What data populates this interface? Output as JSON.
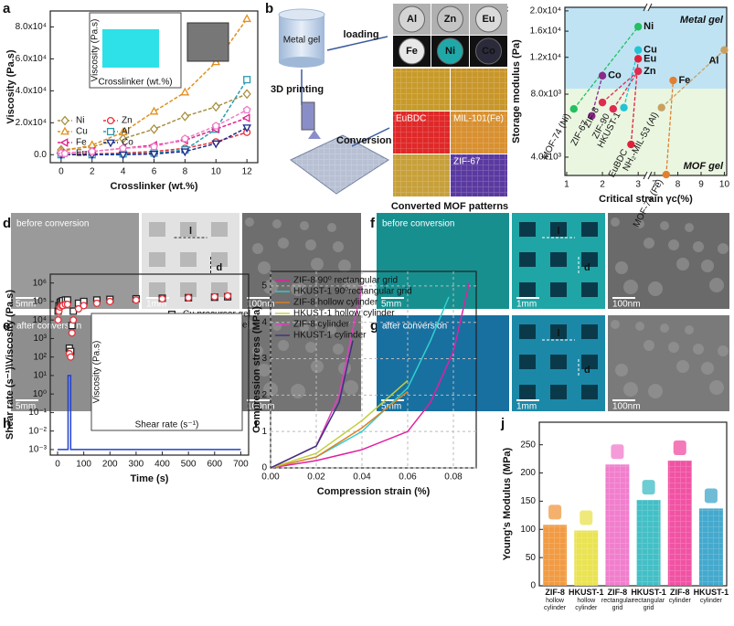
{
  "figure": {
    "panels": [
      "a",
      "b",
      "c",
      "d",
      "e",
      "f",
      "g",
      "h",
      "i",
      "j"
    ],
    "schematic": {
      "metal_gel": "Metal gel",
      "loading": "loading",
      "printing": "3D printing",
      "conversion": "Conversion",
      "caption": "Converted MOF patterns",
      "metals": [
        "Al",
        "Zn",
        "Eu",
        "Fe",
        "Ni",
        "Co"
      ],
      "patterns": [
        "EuBDC",
        "MIL-101(Fe)",
        "ZIF-67"
      ]
    },
    "photos": [
      {
        "caption": "before conversion",
        "scales": [
          "5mm",
          "1mm",
          "100nm"
        ],
        "dims": [
          "l",
          "d"
        ]
      },
      {
        "caption": "after conversion",
        "scales": [
          "5mm",
          "1mm",
          "100nm"
        ],
        "dims": [
          "l",
          "d"
        ]
      },
      {
        "caption": "before conversion",
        "scales": [
          "5mm",
          "1mm",
          "100nm"
        ],
        "dims": [
          "l",
          "d"
        ]
      },
      {
        "caption": "after conversion",
        "scales": [
          "5mm",
          "1mm",
          "100nm"
        ],
        "dims": [
          "l",
          "d"
        ]
      }
    ]
  },
  "chart_data": [
    {
      "type": "line",
      "xlabel": "Crosslinker (wt.%)",
      "ylabel": "Viscosity (Pa.s)",
      "x": [
        0,
        2,
        4,
        6,
        8,
        10,
        12
      ],
      "xlim": [
        -0.7,
        12.7
      ],
      "xticks": [
        0,
        2,
        4,
        6,
        8,
        10,
        12
      ],
      "ylim": [
        -5000,
        90000
      ],
      "yticks": [
        {
          "value": 0,
          "label": "0.0"
        },
        {
          "value": 20000,
          "label": "2.0x10⁴"
        },
        {
          "value": 40000,
          "label": "4.0x10⁴"
        },
        {
          "value": 60000,
          "label": "6.0x10⁴"
        },
        {
          "value": 80000,
          "label": "8.0x10⁴"
        }
      ],
      "legend": "lower left",
      "legend_columns": 2,
      "series": [
        {
          "name": "Ni",
          "color": "#a89040",
          "marker": "diamond",
          "linestyle": "dashed",
          "values": [
            3000,
            5000,
            10000,
            16000,
            24000,
            30000,
            38000
          ]
        },
        {
          "name": "Zn",
          "color": "#e8303a",
          "marker": "circle",
          "linestyle": "dashed",
          "values": [
            0,
            500,
            1000,
            2000,
            4000,
            8000,
            14000
          ]
        },
        {
          "name": "Cu",
          "color": "#e0901e",
          "marker": "triangle-up",
          "linestyle": "dashed",
          "values": [
            2000,
            6000,
            14000,
            27000,
            39000,
            58000,
            85000
          ]
        },
        {
          "name": "Al",
          "color": "#2a9cb0",
          "marker": "square",
          "linestyle": "dashed",
          "values": [
            0,
            0,
            500,
            1000,
            3000,
            16000,
            47000
          ]
        },
        {
          "name": "Fe",
          "color": "#e0228a",
          "marker": "triangle-left",
          "linestyle": "dashed",
          "values": [
            1000,
            2000,
            4000,
            6000,
            9000,
            16000,
            23000
          ]
        },
        {
          "name": "Co",
          "color": "#1a2a8a",
          "marker": "triangle-down",
          "linestyle": "dashed",
          "values": [
            0,
            0,
            0,
            500,
            2000,
            7000,
            17000
          ]
        },
        {
          "name": "Eu",
          "color": "#f07ac8",
          "marker": "pentagon",
          "linestyle": "dashed",
          "values": [
            1000,
            2000,
            4000,
            5000,
            10000,
            18000,
            28000
          ]
        }
      ],
      "inset": {
        "xlabel": "Crosslinker (wt.%)",
        "ylabel": "Viscosity (Pa.s)"
      }
    },
    {
      "type": "scatter",
      "xlabel": "Critical strain γc(%)",
      "ylabel": "Storage modulus (Pa)",
      "ylog": true,
      "xlim": [
        0.95,
        10.1
      ],
      "x_break": [
        3.2,
        6.8
      ],
      "xticks": [
        1,
        2,
        3,
        7,
        8,
        9,
        10
      ],
      "ylim": [
        3270,
        20800
      ],
      "yticks": [
        {
          "value": 4000,
          "label": "4.0x10³"
        },
        {
          "value": 8000,
          "label": "8.0x10³"
        },
        {
          "value": 12000,
          "label": "1.2x10⁴"
        },
        {
          "value": 16000,
          "label": "1.6x10⁴"
        },
        {
          "value": 20000,
          "label": "2.0x10⁴"
        }
      ],
      "region_boundary": 8500,
      "regions": [
        "Metal gel",
        "MOF gel"
      ],
      "series": [
        {
          "color": "#22c060",
          "x": [
            1.2,
            3.0
          ],
          "y": [
            6800,
            16800
          ],
          "labels": [
            "MOF-74 (Ni)",
            "Ni"
          ]
        },
        {
          "color": "#8a2a8a",
          "x": [
            1.7,
            2.0
          ],
          "y": [
            6300,
            9800
          ],
          "labels": [
            "ZIF-67",
            "Co"
          ]
        },
        {
          "color": "#20c4d4",
          "x": [
            2.6,
            3.0
          ],
          "y": [
            6900,
            13000
          ],
          "labels": [
            "HKUST-1",
            "Cu"
          ]
        },
        {
          "color": "#e0203a",
          "x": [
            2.8,
            3.0
          ],
          "y": [
            4600,
            11800
          ],
          "labels": [
            "EuBDC",
            "Eu"
          ]
        },
        {
          "color": "#e02a50",
          "x": [
            2.0,
            2.3,
            3.0
          ],
          "y": [
            7300,
            6800,
            10300
          ],
          "labels": [
            "ZIF-8",
            "ZIF-90",
            "Zn"
          ]
        },
        {
          "color": "#c8a060",
          "x": [
            7.3,
            10.0
          ],
          "y": [
            6900,
            13000
          ],
          "labels": [
            "NH₂-MIL-53 (Al)",
            "Al"
          ]
        },
        {
          "color": "#e08030",
          "x": [
            7.5,
            7.8
          ],
          "y": [
            3300,
            9300
          ],
          "labels": [
            "MOF-74 (Fe)",
            "Fe"
          ]
        }
      ]
    },
    {
      "type": "line",
      "xlabel": "Time (s)",
      "ylabel": "Shear rate (s⁻¹)\\Viscosity (Pa.s)",
      "ylog": true,
      "xlim": [
        -28,
        730
      ],
      "xticks": [
        0,
        100,
        200,
        300,
        400,
        500,
        600,
        700
      ],
      "ylim": [
        0.0005,
        3000000
      ],
      "yticks": [
        {
          "value": 0.001,
          "label": "10⁻³"
        },
        {
          "value": 0.01,
          "label": "10⁻²"
        },
        {
          "value": 0.1,
          "label": "10⁻¹"
        },
        {
          "value": 1,
          "label": "10⁰"
        },
        {
          "value": 10,
          "label": "10¹"
        },
        {
          "value": 100,
          "label": "10²"
        },
        {
          "value": 1000,
          "label": "10³"
        },
        {
          "value": 10000,
          "label": "10⁴"
        },
        {
          "value": 100000,
          "label": "10⁵"
        },
        {
          "value": 1000000,
          "label": "10⁶"
        }
      ],
      "legend": "upper right",
      "series": [
        {
          "name": "Cu precursor gel",
          "color": "#222222",
          "marker": "square",
          "linestyle": "none",
          "x": [
            2,
            5,
            10,
            15,
            20,
            30,
            38,
            45,
            50,
            55,
            60,
            80,
            100,
            150,
            200,
            300,
            400,
            500,
            600,
            650
          ],
          "values": [
            30000,
            60000,
            90000,
            100000,
            110000,
            120000,
            120000,
            300,
            200,
            5000,
            30000,
            80000,
            100000,
            120000,
            130000,
            140000,
            150000,
            160000,
            170000,
            180000
          ]
        },
        {
          "name": "Zn precursor gel",
          "color": "#e8303a",
          "marker": "circle",
          "linestyle": "none",
          "x": [
            2,
            5,
            10,
            15,
            20,
            30,
            38,
            45,
            50,
            55,
            60,
            80,
            100,
            150,
            200,
            300,
            400,
            500,
            600,
            650
          ],
          "values": [
            10000,
            30000,
            50000,
            60000,
            60000,
            70000,
            70000,
            150,
            100,
            2000,
            10000,
            40000,
            60000,
            80000,
            100000,
            120000,
            140000,
            160000,
            180000,
            200000
          ]
        },
        {
          "color": "#2040d0",
          "linestyle": "solid",
          "x": [
            0,
            40,
            40,
            50,
            50,
            700
          ],
          "values": [
            0.001,
            0.001,
            10,
            10,
            0.001,
            0.001
          ]
        }
      ],
      "inset": {
        "xlabel": "Shear rate (s⁻¹)",
        "ylabel": "Viscosity (Pa.s)"
      }
    },
    {
      "type": "line",
      "xlabel": "Compression strain (%)",
      "ylabel": "Compression stress (MPa)",
      "xlim": [
        0,
        0.09
      ],
      "xticks": [
        {
          "value": 0,
          "label": "0.00"
        },
        0.02,
        0.04,
        0.06,
        0.08
      ],
      "ylim": [
        0,
        5.4
      ],
      "yticks": [
        0,
        1,
        2,
        3,
        4,
        5
      ],
      "grid": true,
      "legend": "upper left",
      "series": [
        {
          "name": "ZIF-8 90⁰ rectangular grid",
          "color": "#e020a0",
          "linestyle": "solid",
          "x": [
            0,
            0.02,
            0.04,
            0.06,
            0.07,
            0.08,
            0.087
          ],
          "values": [
            0,
            0.2,
            0.5,
            1.0,
            1.8,
            3.2,
            5.1
          ]
        },
        {
          "name": "HKUST-1 90⁰rectangular grid",
          "color": "#30d0d0",
          "linestyle": "solid",
          "x": [
            0,
            0.02,
            0.04,
            0.06,
            0.07,
            0.078
          ],
          "values": [
            0,
            0.3,
            1.0,
            2.2,
            3.5,
            4.7
          ]
        },
        {
          "name": "ZIF-8 hollow cylinder",
          "color": "#e08020",
          "linestyle": "solid",
          "x": [
            0,
            0.02,
            0.04,
            0.06
          ],
          "values": [
            0,
            0.3,
            1.1,
            2.1
          ]
        },
        {
          "name": "HKUST-1 hollow cylinder",
          "color": "#c0d040",
          "linestyle": "solid",
          "x": [
            0,
            0.02,
            0.04,
            0.06
          ],
          "values": [
            0,
            0.4,
            1.3,
            2.4
          ]
        },
        {
          "name": "ZIF-8 cylinder",
          "color": "#e040c0",
          "linestyle": "solid",
          "x": [
            0,
            0.02,
            0.03,
            0.04
          ],
          "values": [
            0,
            0.6,
            2.0,
            5.0
          ]
        },
        {
          "name": "HKUST-1 cylinder",
          "color": "#403080",
          "linestyle": "solid",
          "x": [
            0,
            0.02,
            0.03,
            0.036
          ],
          "values": [
            0,
            0.6,
            1.8,
            3.5
          ]
        }
      ]
    },
    {
      "type": "bar",
      "ylabel": "Young's Modulus (MPa)",
      "categories": [
        "ZIF-8 hollow cylinder",
        "HKUST-1 hollow cylinder",
        "ZIF-8 rectangular grid",
        "HKUST-1 rectangular grid",
        "ZIF-8 cylinder",
        "HKUST-1 cylinder"
      ],
      "values": [
        108,
        98,
        215,
        152,
        222,
        137
      ],
      "colors": [
        "#f09030",
        "#e8e040",
        "#f070c8",
        "#30b8c0",
        "#f0409a",
        "#30a0c8"
      ],
      "ylim": [
        0,
        290
      ],
      "yticks": [
        0,
        50,
        100,
        150,
        200,
        250
      ]
    }
  ]
}
